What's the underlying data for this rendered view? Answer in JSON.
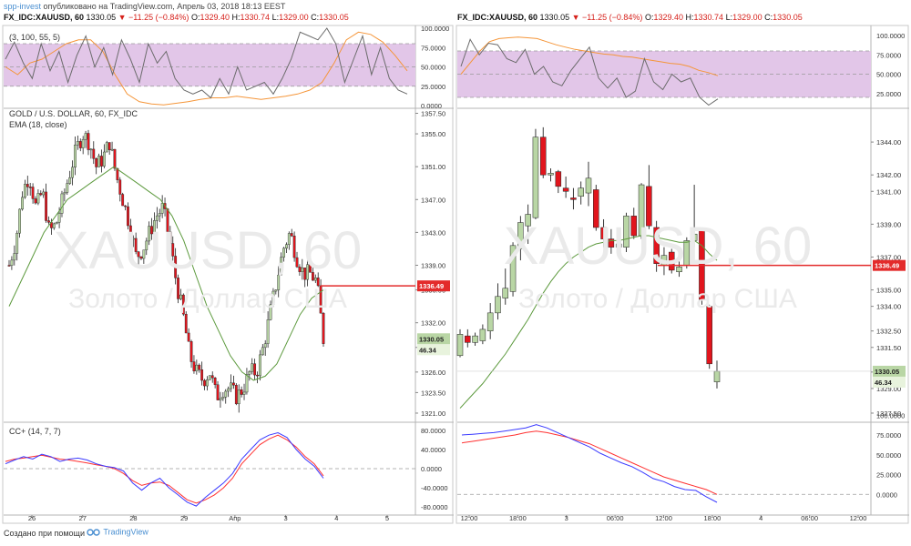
{
  "header": {
    "user": "spp-invest",
    "published": "опубликовано на TradingView.com, Апрель 03, 2018 18:13 EEST"
  },
  "panes": {
    "left": {
      "symbol": "FX_IDC:XAUUSD, 60",
      "last": "1330.05",
      "change": "−11.25 (−0.84%)",
      "o": "1329.40",
      "h": "1330.74",
      "l": "1329.00",
      "c": "1330.05",
      "main_legend_1": "GOLD / U.S. DOLLAR, 60, FX_IDC",
      "main_legend_2": "EMA (18, close)",
      "top_legend": "(3, 100, 55, 5)",
      "bottom_legend": "CC+ (14, 7, 7)",
      "watermark_1": "XAUUSD, 60",
      "watermark_2": "Золото / Доллар США"
    },
    "right": {
      "symbol": "FX_IDC:XAUUSD, 60",
      "last": "1330.05",
      "change": "−11.25 (−0.84%)",
      "o": "1329.40",
      "h": "1330.74",
      "l": "1329.00",
      "c": "1330.05",
      "watermark_1": "XAUUSD, 60",
      "watermark_2": "Золото / Доллар США"
    }
  },
  "labels": {
    "o": "O:",
    "h": "H:",
    "l": "L:",
    "c": "C:"
  },
  "colors": {
    "up": "#b9d6a5",
    "down": "#e1151d",
    "ema": "#5d9a3e",
    "hline": "#e32b2b",
    "osc_gray": "#6b6b6b",
    "osc_orange": "#f5963a",
    "band": "#e2c6e8",
    "blue": "#3a3aff",
    "red": "#ff3030"
  },
  "chart_data": [
    {
      "type": "candlestick",
      "pane": "left-main",
      "title": "GOLD / U.S. DOLLAR, 60, FX_IDC",
      "ylim": [
        1320,
        1358
      ],
      "y_ticks": [
        "1357.50",
        "1355.00",
        "1351.00",
        "1347.00",
        "1343.00",
        "1339.00",
        "1336.00",
        "1332.00",
        "1329.00",
        "1326.00",
        "1323.50",
        "1321.00"
      ],
      "x_ticks": [
        "26",
        "27",
        "28",
        "29",
        "Апр",
        "3",
        "4",
        "5"
      ],
      "hline": 1336.49,
      "last_price_label": "1330.05",
      "aux_label": "46.34",
      "close_path": [
        1339,
        1342,
        1348,
        1350,
        1346,
        1348,
        1343,
        1344,
        1347,
        1350,
        1353,
        1355,
        1354,
        1351,
        1352,
        1354,
        1350,
        1347,
        1344,
        1340,
        1341,
        1343,
        1345,
        1346,
        1342,
        1337,
        1333,
        1328,
        1326,
        1325,
        1326,
        1323,
        1324,
        1324,
        1323,
        1324,
        1326,
        1326,
        1329,
        1333,
        1337,
        1341,
        1343,
        1340,
        1338,
        1338,
        1337,
        1330
      ],
      "ema_label": "EMA (18, close)",
      "ema_values": [
        1334,
        1337,
        1340,
        1343,
        1345,
        1347,
        1348,
        1349,
        1350,
        1351,
        1350,
        1349,
        1348,
        1347,
        1345,
        1342,
        1338,
        1334,
        1331,
        1328,
        1326,
        1325,
        1325.5,
        1327,
        1330,
        1333,
        1335,
        1336
      ]
    },
    {
      "type": "candlestick",
      "pane": "right-main",
      "ylim": [
        1327,
        1346
      ],
      "y_ticks": [
        "1344.00",
        "1342.00",
        "1341.00",
        "1339.00",
        "1337.00",
        "1335.00",
        "1334.00",
        "1332.50",
        "1331.50",
        "1330.00",
        "1329.00",
        "1327.50"
      ],
      "x_ticks": [
        "12:00",
        "18:00",
        "3",
        "06:00",
        "12:00",
        "18:00",
        "4",
        "06:00",
        "12:00"
      ],
      "hline": 1336.49,
      "last_price_label": "1330.05",
      "aux_label": "46.34",
      "candles": [
        {
          "o": 1331.0,
          "h": 1332.6,
          "l": 1330.9,
          "c": 1332.3
        },
        {
          "o": 1332.2,
          "h": 1332.6,
          "l": 1331.5,
          "c": 1331.8
        },
        {
          "o": 1331.8,
          "h": 1332.4,
          "l": 1331.6,
          "c": 1332.2
        },
        {
          "o": 1331.9,
          "h": 1332.9,
          "l": 1331.7,
          "c": 1332.6
        },
        {
          "o": 1332.5,
          "h": 1334.2,
          "l": 1332.0,
          "c": 1333.6
        },
        {
          "o": 1333.6,
          "h": 1335.4,
          "l": 1333.2,
          "c": 1334.6
        },
        {
          "o": 1334.5,
          "h": 1336.3,
          "l": 1334.1,
          "c": 1335.1
        },
        {
          "o": 1334.9,
          "h": 1337.9,
          "l": 1334.6,
          "c": 1337.7
        },
        {
          "o": 1337.5,
          "h": 1339.5,
          "l": 1336.8,
          "c": 1339.1
        },
        {
          "o": 1338.9,
          "h": 1340.2,
          "l": 1337.8,
          "c": 1339.6
        },
        {
          "o": 1339.4,
          "h": 1344.8,
          "l": 1339.3,
          "c": 1344.3
        },
        {
          "o": 1344.3,
          "h": 1344.9,
          "l": 1341.8,
          "c": 1342.0
        },
        {
          "o": 1342.0,
          "h": 1342.4,
          "l": 1341.6,
          "c": 1342.1
        },
        {
          "o": 1342.2,
          "h": 1342.3,
          "l": 1340.9,
          "c": 1341.3
        },
        {
          "o": 1341.2,
          "h": 1341.9,
          "l": 1340.6,
          "c": 1341.0
        },
        {
          "o": 1340.6,
          "h": 1341.2,
          "l": 1339.9,
          "c": 1340.5
        },
        {
          "o": 1340.7,
          "h": 1341.6,
          "l": 1340.2,
          "c": 1341.2
        },
        {
          "o": 1340.9,
          "h": 1342.8,
          "l": 1340.1,
          "c": 1341.8
        },
        {
          "o": 1341.1,
          "h": 1341.4,
          "l": 1338.6,
          "c": 1338.8
        },
        {
          "o": 1338.8,
          "h": 1339.3,
          "l": 1337.6,
          "c": 1338.1
        },
        {
          "o": 1338.1,
          "h": 1338.7,
          "l": 1337.2,
          "c": 1337.6
        },
        {
          "o": 1337.6,
          "h": 1338.2,
          "l": 1337.0,
          "c": 1337.8
        },
        {
          "o": 1337.6,
          "h": 1339.7,
          "l": 1337.3,
          "c": 1339.5
        },
        {
          "o": 1339.5,
          "h": 1340.0,
          "l": 1338.1,
          "c": 1338.3
        },
        {
          "o": 1338.3,
          "h": 1341.5,
          "l": 1338.1,
          "c": 1341.4
        },
        {
          "o": 1341.3,
          "h": 1342.6,
          "l": 1338.7,
          "c": 1338.9
        },
        {
          "o": 1338.8,
          "h": 1339.2,
          "l": 1336.1,
          "c": 1336.6
        },
        {
          "o": 1336.5,
          "h": 1337.6,
          "l": 1335.9,
          "c": 1337.1
        },
        {
          "o": 1337.3,
          "h": 1337.5,
          "l": 1336.0,
          "c": 1336.2
        },
        {
          "o": 1336.1,
          "h": 1337.2,
          "l": 1335.8,
          "c": 1336.4
        },
        {
          "o": 1336.5,
          "h": 1338.2,
          "l": 1336.3,
          "c": 1338.0
        },
        {
          "o": 1338.0,
          "h": 1341.4,
          "l": 1337.6,
          "c": 1338.4
        },
        {
          "o": 1338.6,
          "h": 1338.7,
          "l": 1334.1,
          "c": 1334.4
        },
        {
          "o": 1334.0,
          "h": 1334.1,
          "l": 1330.2,
          "c": 1330.5
        },
        {
          "o": 1329.4,
          "h": 1330.7,
          "l": 1329.0,
          "c": 1330.05
        }
      ],
      "ema_values": [
        1327.8,
        1328.3,
        1328.8,
        1329.3,
        1329.9,
        1330.5,
        1331.1,
        1331.8,
        1332.5,
        1333.2,
        1334.0,
        1334.8,
        1335.5,
        1336.1,
        1336.6,
        1337.0,
        1337.3,
        1337.6,
        1337.8,
        1337.9,
        1338.0,
        1338.0,
        1338.1,
        1338.2,
        1338.3,
        1338.3,
        1338.2,
        1338.1,
        1338.0,
        1337.9,
        1337.9,
        1338.0,
        1337.7,
        1337.2,
        1336.8
      ]
    },
    {
      "type": "line",
      "pane": "left-top",
      "legend": "(3, 100, 55, 5)",
      "y_ticks": [
        "100.0000",
        "75.0000",
        "50.0000",
        "25.0000",
        "0.0000"
      ],
      "band": [
        25,
        80
      ],
      "series": [
        {
          "values": [
            60,
            82,
            55,
            35,
            80,
            45,
            70,
            30,
            65,
            90,
            50,
            75,
            40,
            85,
            60,
            30,
            80,
            55,
            70,
            35,
            20,
            15,
            20,
            10,
            35,
            15,
            50,
            20,
            25,
            30,
            15,
            35,
            60,
            95,
            90,
            85,
            100,
            80,
            30,
            60,
            90,
            40,
            75,
            35,
            20,
            15
          ]
        },
        {
          "values": [
            50,
            40,
            55,
            60,
            70,
            80,
            85,
            85,
            70,
            40,
            15,
            5,
            2,
            1,
            3,
            5,
            8,
            10,
            10,
            12,
            10,
            8,
            10,
            12,
            15,
            20,
            30,
            55,
            85,
            95,
            92,
            82,
            65,
            45
          ]
        }
      ]
    },
    {
      "type": "line",
      "pane": "right-top",
      "y_ticks": [
        "100.0000",
        "75.0000",
        "50.0000",
        "25.0000"
      ],
      "band": [
        20,
        80
      ],
      "series": [
        {
          "values": [
            60,
            95,
            75,
            90,
            88,
            70,
            65,
            82,
            50,
            60,
            40,
            35,
            55,
            70,
            85,
            45,
            32,
            45,
            20,
            28,
            70,
            40,
            30,
            50,
            40,
            45,
            20,
            10,
            18
          ]
        },
        {
          "values": [
            50,
            65,
            80,
            92,
            96,
            97,
            98,
            97,
            96,
            92,
            88,
            85,
            82,
            80,
            78,
            76,
            75,
            73,
            72,
            70,
            68,
            66,
            64,
            63,
            60,
            55,
            52,
            48
          ]
        }
      ]
    },
    {
      "type": "line",
      "pane": "left-bottom",
      "legend": "CC+ (14, 7, 7)",
      "y_ticks": [
        "80.0000",
        "40.0000",
        "0.0000",
        "-40.0000",
        "-80.0000"
      ],
      "series": [
        {
          "values": [
            10,
            18,
            25,
            20,
            30,
            25,
            15,
            20,
            22,
            18,
            10,
            5,
            2,
            -5,
            -30,
            -45,
            -30,
            -20,
            -40,
            -55,
            -70,
            -78,
            -60,
            -45,
            -30,
            -10,
            20,
            40,
            60,
            70,
            75,
            65,
            40,
            20,
            5,
            -20
          ]
        },
        {
          "values": [
            15,
            20,
            22,
            25,
            28,
            24,
            20,
            18,
            15,
            12,
            8,
            5,
            0,
            -10,
            -25,
            -35,
            -30,
            -28,
            -35,
            -50,
            -65,
            -72,
            -65,
            -55,
            -40,
            -20,
            10,
            30,
            50,
            62,
            70,
            60,
            45,
            25,
            10,
            -15
          ]
        }
      ]
    },
    {
      "type": "line",
      "pane": "right-bottom",
      "y_ticks": [
        "100.0000",
        "75.0000",
        "50.0000",
        "25.0000",
        "0.0000"
      ],
      "series": [
        {
          "values": [
            75,
            76,
            77,
            78,
            80,
            82,
            84,
            88,
            84,
            78,
            72,
            66,
            60,
            52,
            46,
            40,
            35,
            28,
            20,
            16,
            10,
            6,
            5,
            -3,
            -10
          ]
        },
        {
          "values": [
            65,
            67,
            69,
            71,
            73,
            75,
            78,
            80,
            78,
            75,
            72,
            68,
            64,
            58,
            52,
            46,
            40,
            34,
            28,
            22,
            18,
            14,
            10,
            6,
            0
          ]
        }
      ]
    }
  ]
}
